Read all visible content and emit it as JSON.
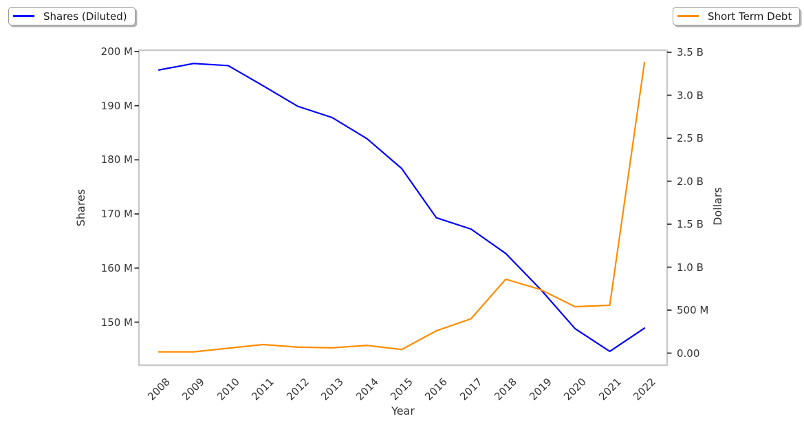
{
  "chart_data": {
    "type": "line",
    "title": "",
    "x_label": "Year",
    "x": [
      2008,
      2009,
      2010,
      2011,
      2012,
      2013,
      2014,
      2015,
      2016,
      2017,
      2018,
      2019,
      2020,
      2021,
      2022
    ],
    "x_tick_labels": [
      "2008",
      "2009",
      "2010",
      "2011",
      "2012",
      "2013",
      "2014",
      "2015",
      "2016",
      "2017",
      "2018",
      "2019",
      "2020",
      "2021",
      "2022"
    ],
    "series": [
      {
        "name": "Shares (Diluted)",
        "axis": "left",
        "color": "#0000ff",
        "units": "shares",
        "values_millions": [
          196.6,
          197.8,
          197.4,
          193.7,
          189.9,
          187.8,
          183.9,
          178.4,
          169.3,
          167.2,
          162.7,
          156.1,
          148.8,
          144.6,
          148.9
        ]
      },
      {
        "name": "Short Term Debt",
        "axis": "right",
        "color": "#ff8c00",
        "units": "dollars",
        "values_millions": [
          15,
          15,
          57,
          100,
          70,
          62,
          90,
          42,
          260,
          400,
          860,
          740,
          540,
          557,
          3380
        ]
      }
    ],
    "left_axis": {
      "label": "Shares",
      "tick_labels": [
        "200 M",
        "190 M",
        "180 M",
        "170 M",
        "160 M",
        "150 M"
      ],
      "tick_values_millions": [
        200,
        190,
        180,
        170,
        160,
        150
      ],
      "range_millions": [
        142,
        200.3
      ]
    },
    "right_axis": {
      "label": "Dollars",
      "tick_labels": [
        "3.5 B",
        "3.0 B",
        "2.5 B",
        "2.0 B",
        "1.5 B",
        "1.0 B",
        "500 M",
        "0.00"
      ],
      "tick_values_billions": [
        3.5,
        3.0,
        2.5,
        2.0,
        1.5,
        1.0,
        0.5,
        0.0
      ],
      "range_billions": [
        -0.15,
        3.53
      ]
    },
    "grid": false,
    "legend": {
      "left": {
        "label": "Shares (Diluted)",
        "position": "top-left"
      },
      "right": {
        "label": "Short Term Debt",
        "position": "top-right"
      }
    }
  }
}
